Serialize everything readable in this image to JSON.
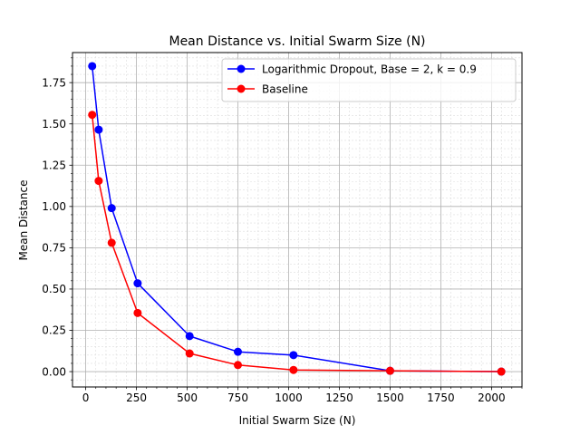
{
  "chart_data": {
    "type": "line",
    "title": "Mean Distance vs. Initial Swarm Size (N)",
    "xlabel": "Initial Swarm Size (N)",
    "ylabel": "Mean Distance",
    "xlim": [
      -65,
      2150
    ],
    "ylim": [
      -0.093,
      1.932
    ],
    "xticks": [
      0,
      250,
      500,
      750,
      1000,
      1250,
      1500,
      1750,
      2000
    ],
    "xtick_labels": [
      "0",
      "250",
      "500",
      "750",
      "1000",
      "1250",
      "1500",
      "1750",
      "2000"
    ],
    "yticks": [
      0.0,
      0.25,
      0.5,
      0.75,
      1.0,
      1.25,
      1.5,
      1.75
    ],
    "ytick_labels": [
      "0.00",
      "0.25",
      "0.50",
      "0.75",
      "1.00",
      "1.25",
      "1.50",
      "1.75"
    ],
    "grid": true,
    "minor_grid": true,
    "legend_position": "top-right",
    "x": [
      32,
      64,
      128,
      256,
      512,
      750,
      1024,
      1500,
      2048
    ],
    "series": [
      {
        "name": "Logarithmic Dropout, Base = 2, k = 0.9",
        "color": "#0000ff",
        "marker": "circle",
        "values": [
          1.85,
          1.465,
          0.99,
          0.535,
          0.215,
          0.12,
          0.1,
          0.005,
          0.0
        ]
      },
      {
        "name": "Baseline",
        "color": "#ff0000",
        "marker": "circle",
        "values": [
          1.555,
          1.155,
          0.78,
          0.355,
          0.11,
          0.04,
          0.01,
          0.005,
          0.0
        ]
      }
    ]
  }
}
